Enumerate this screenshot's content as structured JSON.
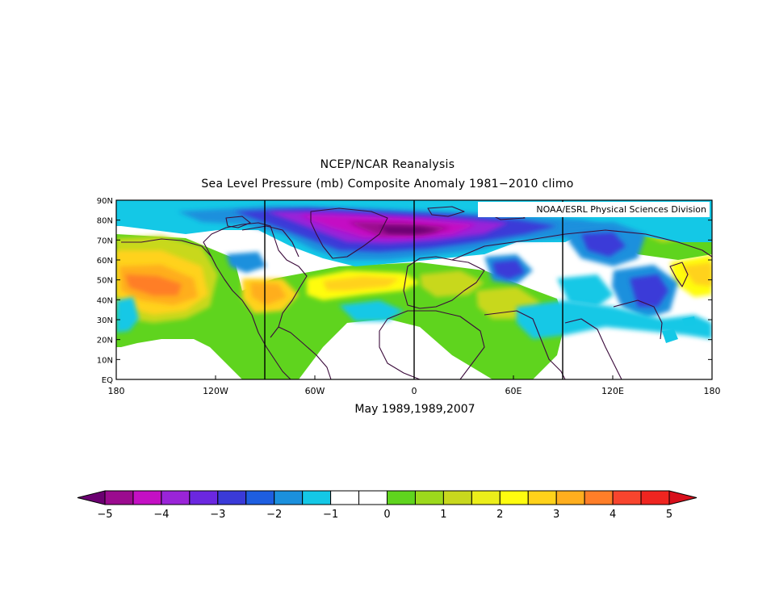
{
  "header": {
    "title": "NCEP/NCAR Reanalysis",
    "subtitle": "Sea Level Pressure (mb) Composite Anomaly 1981−2010 climo"
  },
  "map": {
    "credit": "NOAA/ESRL Physical Sciences Division",
    "period_label": "May 1989,1989,2007",
    "lat_labels": [
      "90N",
      "80N",
      "70N",
      "60N",
      "50N",
      "40N",
      "30N",
      "20N",
      "10N",
      "EQ"
    ],
    "lon_labels": [
      "180",
      "120W",
      "60W",
      "0",
      "60E",
      "120E",
      "180"
    ],
    "lat_values": [
      90,
      80,
      70,
      60,
      50,
      40,
      30,
      20,
      10,
      0
    ],
    "lon_values": [
      -180,
      -120,
      -60,
      0,
      60,
      120,
      180
    ],
    "lon_range": [
      -180,
      180
    ],
    "lat_range": [
      0,
      90
    ],
    "variable": "Sea Level Pressure anomaly (mb)"
  },
  "colorbar": {
    "tick_labels": [
      "−5",
      "−4",
      "−3",
      "−2",
      "−1",
      "0",
      "1",
      "2",
      "3",
      "4",
      "5"
    ],
    "colors": [
      "#6b0071",
      "#9b0b8f",
      "#c410c4",
      "#9a24d8",
      "#6b27e0",
      "#3a3ad8",
      "#1e5ee0",
      "#1b90dd",
      "#14c8e6",
      "#ffffff",
      "#ffffff",
      "#5fd41e",
      "#9cd91c",
      "#c8d81e",
      "#ecee1a",
      "#fffc0f",
      "#ffd21a",
      "#ffae1e",
      "#ff7e28",
      "#f8452e",
      "#ef2520",
      "#d8101c"
    ]
  }
}
